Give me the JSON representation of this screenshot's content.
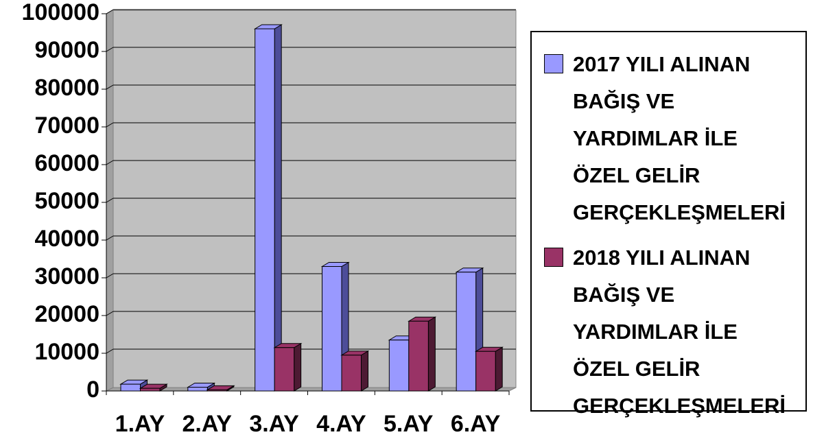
{
  "chart_data": {
    "type": "bar3d",
    "categories": [
      "1.AY",
      "2.AY",
      "3.AY",
      "4.AY",
      "5.AY",
      "6.AY"
    ],
    "series": [
      {
        "name": "2017 YILI ALINAN BAĞIŞ VE YARDIMLAR İLE ÖZEL GELİR GERÇEKLEŞMELERİ",
        "color": "#9999ff",
        "side": "#4d4d99",
        "values": [
          1800,
          1000,
          96000,
          33000,
          13500,
          31500
        ]
      },
      {
        "name": "2018 YILI ALINAN BAĞIŞ VE YARDIMLAR İLE ÖZEL GELİR GERÇEKLEŞMELERİ",
        "color": "#993366",
        "side": "#4d1a33",
        "values": [
          700,
          300,
          11500,
          9500,
          18500,
          10500
        ]
      }
    ],
    "ylim": [
      0,
      100000
    ],
    "yticks": [
      0,
      10000,
      20000,
      30000,
      40000,
      50000,
      60000,
      70000,
      80000,
      90000,
      100000
    ],
    "grid": true,
    "legend": "right"
  }
}
